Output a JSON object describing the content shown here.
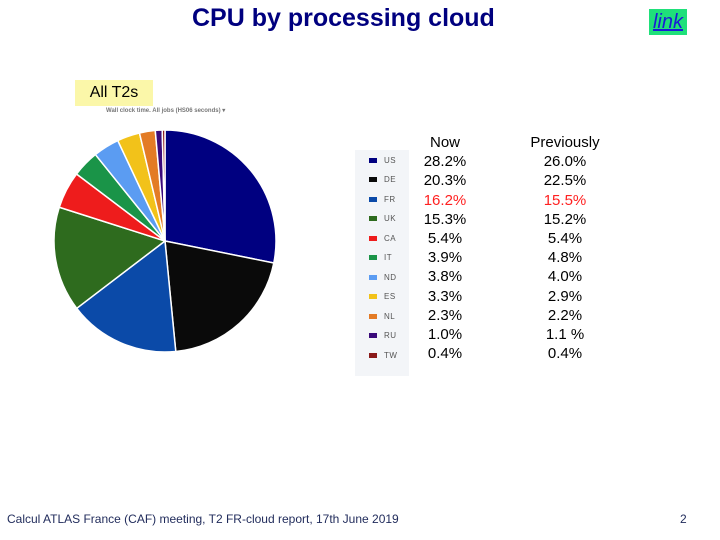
{
  "title": "CPU by processing cloud",
  "link_label": "link",
  "tag_label": "All T2s",
  "chart_caption": "Wall clock time. All jobs (HS06 seconds)  ▾",
  "chart_data": {
    "type": "pie",
    "title": "",
    "labels": [
      "US",
      "DE",
      "FR",
      "UK",
      "CA",
      "IT",
      "ND",
      "ES",
      "NL",
      "RU",
      "TW"
    ],
    "values": [
      28.2,
      20.3,
      16.2,
      15.3,
      5.4,
      3.9,
      3.8,
      3.3,
      2.3,
      1.0,
      0.4
    ],
    "colors": [
      "#000080",
      "#0a0a0a",
      "#0b4aa8",
      "#2e6b1e",
      "#ee1c1c",
      "#1a9448",
      "#5b9cf2",
      "#f2c21a",
      "#e37b25",
      "#3a0a7a",
      "#8a1a1a"
    ],
    "legend_position": "right"
  },
  "table": {
    "headers": [
      "Now",
      "Previously"
    ],
    "now": [
      "28.2%",
      "20.3%",
      "16.2%",
      "15.3%",
      "5.4%",
      "3.9%",
      "3.8%",
      "3.3%",
      "2.3%",
      "1.0%",
      "0.4%"
    ],
    "previously": [
      "26.0%",
      "22.5%",
      "15.5%",
      "15.2%",
      "5.4%",
      "4.8%",
      "4.0%",
      "2.9%",
      "2.2%",
      "1.1 %",
      "0.4%"
    ],
    "highlight_color": "#ff2020"
  },
  "footer": "Calcul ATLAS France (CAF) meeting, T2 FR-cloud report, 17th June 2019",
  "page_number": "2"
}
